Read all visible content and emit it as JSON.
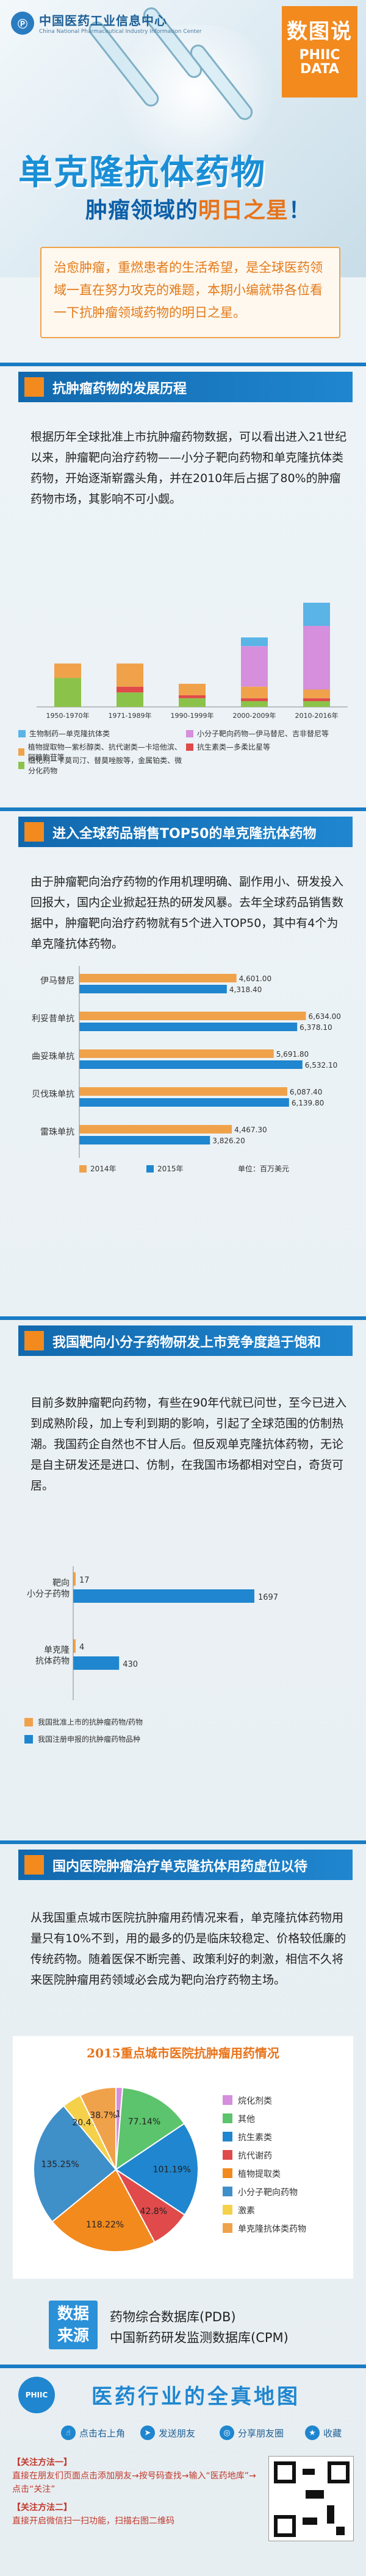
{
  "header": {
    "logo_text": "中国医药工业信息中心",
    "logo_sub": "China National Pharmaceutical Industry Information Center",
    "badge_line1": "数图说",
    "badge_line2": "PHIIC DATA"
  },
  "hero": {
    "title": "单克隆抗体药物",
    "subtitle_pre": "肿瘤领域的",
    "subtitle_hl": "明日之星",
    "subtitle_post": "！"
  },
  "intro": "治愈肿瘤，重燃患者的生活希望，是全球医药领域一直在努力攻克的难题，本期小编就带各位看一下抗肿瘤领域药物的明日之星。",
  "sec1": {
    "title": "抗肿瘤药物的发展历程",
    "text": "根据历年全球批准上市抗肿瘤药物数据，可以看出进入21世纪以来，肿瘤靶向治疗药物——小分子靶向药物和单克隆抗体类药物，开始逐渐崭露头角，并在2010年后占据了80%的肿瘤药物市场，其影响不可小觑。"
  },
  "sec2": {
    "title": "进入全球药品销售TOP50的单克隆抗体药物",
    "text": "由于肿瘤靶向治疗药物的作用机理明确、副作用小、研发投入回报大，国内企业掀起狂热的研发风暴。去年全球药品销售数据中，肿瘤靶向治疗药物就有5个进入TOP50，其中有4个为单克隆抗体药物。"
  },
  "sec3": {
    "title": "我国靶向小分子药物研发上市竞争度趋于饱和",
    "text": "目前多数肿瘤靶向药物，有些在90年代就已问世，至今已进入到成熟阶段，加上专利到期的影响，引起了全球范围的仿制热潮。我国药企自然也不甘人后。但反观单克隆抗体药物，无论是自主研发还是进口、仿制，在我国市场都相对空白，奇货可居。"
  },
  "sec4": {
    "title": "国内医院肿瘤治疗单克隆抗体用药虚位以待",
    "text": "从我国重点城市医院抗肿瘤用药情况来看，单克隆抗体药物用量只有10%不到，用的最多的仍是临床较稳定、价格较低廉的传统药物。随着医保不断完善、政策利好的刺激，相信不久将来医院肿瘤用药领域必会成为靶向治疗药物主场。"
  },
  "source": {
    "label1": "数据",
    "label2": "来源",
    "items": [
      "药物综合数据库(PDB)",
      "中国新药研发监测数据库(CPM)"
    ]
  },
  "footer": {
    "slogan": "医药行业的全真地图",
    "logo": "PHIIC",
    "buttons": [
      "点击右上角",
      "发送朋友",
      "分享朋友圈",
      "收藏"
    ],
    "follow1_title": "【关注方法一】",
    "follow1_text": "直接在朋友们页面点击添加朋友→按号码查找→输入“医药地库”→点击“关注”",
    "follow2_title": "【关注方法二】",
    "follow2_text": "直接开启微信扫一扫功能，扫描右图二维码"
  },
  "colors": {
    "blue": "#1a7cc4",
    "orange": "#f28a1e",
    "darkblue": "#0c5fa8"
  },
  "chart_data": [
    {
      "type": "bar",
      "title": "",
      "categories": [
        "1950-1970年",
        "1971-1989年",
        "1990-1999年",
        "2000-2009年",
        "2010-2016年"
      ],
      "series": [
        {
          "name": "生物制药—单克隆抗体类",
          "values": [
            0,
            0,
            0,
            3,
            8
          ],
          "color": "#5ab4e6"
        },
        {
          "name": "小分子靶向药物—伊马替尼、吉非替尼等",
          "values": [
            0,
            0,
            0,
            14,
            22
          ],
          "color": "#d58fdc"
        },
        {
          "name": "植物提取物—紫杉醇类、抗代谢类—卡培他滨、阿糖胞苷等",
          "values": [
            5,
            8,
            4,
            4,
            3
          ],
          "color": "#f0a24a"
        },
        {
          "name": "抗生素类—多柔比星等",
          "values": [
            0,
            2,
            1,
            1,
            1
          ],
          "color": "#e04a4a"
        },
        {
          "name": "细化剂—卡莫司汀、替莫唑胺等，金属铂类、微分化药物",
          "values": [
            10,
            5,
            3,
            2,
            2
          ],
          "color": "#8bc34a"
        }
      ],
      "legend": "bottom",
      "ylim": [
        0,
        40
      ]
    },
    {
      "type": "bar",
      "title": "",
      "orientation": "horizontal",
      "categories": [
        "伊马替尼",
        "利妥昔单抗",
        "曲妥珠单抗",
        "贝伐珠单抗",
        "雷珠单抗"
      ],
      "series": [
        {
          "name": "2014年",
          "values": [
            4601.0,
            6634.0,
            5691.8,
            6087.4,
            4467.3
          ],
          "color": "#f0a24a"
        },
        {
          "name": "2015年",
          "values": [
            4318.4,
            6378.1,
            6532.1,
            6139.8,
            3826.2
          ],
          "color": "#1f86cf"
        }
      ],
      "unit_label": "单位：百万美元",
      "xlim": [
        0,
        7500
      ]
    },
    {
      "type": "bar",
      "title": "",
      "orientation": "horizontal",
      "categories": [
        "靶向小分子药物",
        "单克隆抗体药物"
      ],
      "series": [
        {
          "name": "我国批准上市的抗肿瘤药物/药物",
          "values": [
            17,
            4
          ],
          "color": "#f0a24a"
        },
        {
          "name": "我国注册申报的抗肿瘤药物品种",
          "values": [
            1697,
            430
          ],
          "color": "#1f86cf"
        }
      ],
      "category_labels": [
        [
          "靶向",
          "小分子药物"
        ],
        [
          "单克隆",
          "抗体药物"
        ]
      ],
      "xlim": [
        0,
        2400
      ]
    },
    {
      "type": "pie",
      "title": "2015重点城市医院抗肿瘤用药情况",
      "labels": [
        "烷化剂类",
        "其他",
        "抗生素类",
        "抗代谢药",
        "植物提取类",
        "小分子靶向药物",
        "激素",
        "单克隆抗体类药物"
      ],
      "values": [
        7.1,
        77.14,
        101.19,
        42.8,
        118.22,
        135.25,
        20.4,
        38.7
      ],
      "colors": [
        "#d58fdc",
        "#5cc46c",
        "#1f86cf",
        "#e04a4a",
        "#f28a1e",
        "#3f8fc9",
        "#f5d04a",
        "#f0a24a"
      ],
      "legend": "right"
    }
  ]
}
